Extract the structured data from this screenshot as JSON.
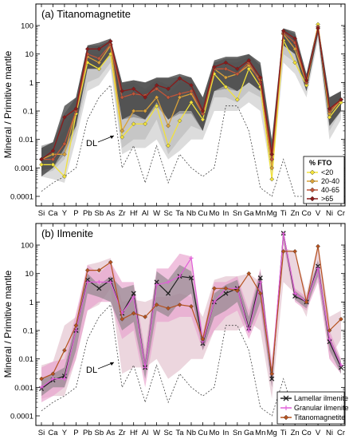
{
  "ylabel": "Mineral / Primitive mantle",
  "elements": [
    "Si",
    "Ca",
    "Y",
    "P",
    "Pb",
    "Sb",
    "As",
    "Zr",
    "Hf",
    "Al",
    "W",
    "Sc",
    "Ta",
    "Nb",
    "Cu",
    "Mo",
    "In",
    "Sn",
    "Ga",
    "Mn",
    "Mg",
    "Ti",
    "Zn",
    "Co",
    "V",
    "Ni",
    "Cr"
  ],
  "ytick_labels": [
    "0.0001",
    "0.001",
    "0.01",
    "0.1",
    "1",
    "10",
    "100"
  ],
  "colors": {
    "fto_lt20": "#f2e23a",
    "fto_20_40": "#d9a23a",
    "fto_40_65": "#c0563a",
    "fto_gt65": "#8b1a1a",
    "band_dark": "#3c3c3c",
    "band_mid": "#7a7a7a",
    "band_light": "#b4b4b4",
    "lamellar": "#222222",
    "granular": "#e05fd8",
    "granular_band": "#e8a0cc",
    "titanomagnetite_b": "#b5521e",
    "dl_line": "#444444"
  },
  "chart_data": [
    {
      "panel": "a",
      "type": "line",
      "title": "(a) Titanomagnetite",
      "ylabel": "Mineral / Primitive mantle",
      "yscale": "log",
      "ylim": [
        0.0001,
        300
      ],
      "categories": [
        "Si",
        "Ca",
        "Y",
        "P",
        "Pb",
        "Sb",
        "As",
        "Zr",
        "Hf",
        "Al",
        "W",
        "Sc",
        "Ta",
        "Nb",
        "Cu",
        "Mo",
        "In",
        "Sn",
        "Ga",
        "Mn",
        "Mg",
        "Ti",
        "Zn",
        "Co",
        "V",
        "Ni",
        "Cr"
      ],
      "legend": {
        "title": "% FTO",
        "position": "bottom-right",
        "entries": [
          "<20",
          "20-40",
          "40-65",
          ">65"
        ]
      },
      "annotation": "DL",
      "bands": [
        {
          "series": ">65",
          "low": [
            0.0005,
            0.001,
            0.005,
            0.03,
            3,
            3,
            10,
            0.05,
            0.08,
            0.05,
            0.2,
            0.05,
            0.1,
            0.1,
            0.02,
            0.5,
            0.8,
            0.5,
            1,
            0.5,
            0.0008,
            20,
            10,
            0.5,
            50,
            0.03,
            0.1
          ],
          "high": [
            0.005,
            0.008,
            0.15,
            0.3,
            20,
            25,
            35,
            1,
            1.2,
            1,
            1.5,
            1.5,
            2,
            1.5,
            0.3,
            6,
            8,
            8,
            10,
            5,
            0.01,
            80,
            60,
            2,
            120,
            0.3,
            0.5
          ]
        },
        {
          "series": "40-65",
          "low": [
            0.0008,
            0.001,
            0.003,
            0.03,
            3,
            3,
            9,
            0.05,
            0.06,
            0.05,
            0.15,
            0.05,
            0.08,
            0.08,
            0.02,
            0.5,
            0.6,
            0.5,
            1,
            0.5,
            0.0008,
            20,
            10,
            0.5,
            50,
            0.03,
            0.1
          ],
          "high": [
            0.006,
            0.008,
            0.08,
            0.3,
            20,
            20,
            30,
            1,
            1.2,
            1,
            1.4,
            1.4,
            1.6,
            1.5,
            0.3,
            5,
            7,
            7,
            10,
            4,
            0.008,
            80,
            50,
            2,
            110,
            0.3,
            0.5
          ]
        },
        {
          "series": "20-40",
          "low": [
            0.0006,
            0.0008,
            0.002,
            0.02,
            1,
            1.5,
            5,
            0.005,
            0.01,
            0.01,
            0.05,
            0.003,
            0.01,
            0.03,
            0.02,
            0.3,
            0.3,
            0.2,
            0.5,
            0.3,
            0.001,
            10,
            5,
            0.5,
            50,
            0.02,
            0.1
          ],
          "high": [
            0.005,
            0.008,
            0.05,
            0.3,
            15,
            20,
            30,
            0.8,
            1,
            0.6,
            1.2,
            0.8,
            1.5,
            1.2,
            0.2,
            5,
            5,
            5,
            8,
            4,
            0.006,
            80,
            40,
            1.5,
            100,
            0.3,
            0.5
          ]
        },
        {
          "series": "<20",
          "low": [
            0.0005,
            0.0004,
            0.0003,
            0.01,
            0.5,
            0.8,
            3,
            0.003,
            0.005,
            0.005,
            0.01,
            0.002,
            0.004,
            0.01,
            0.01,
            0.1,
            0.1,
            0.1,
            0.2,
            0.1,
            0.0004,
            5,
            2,
            0.3,
            30,
            0.01,
            0.05
          ],
          "high": [
            0.004,
            0.006,
            0.02,
            0.2,
            10,
            10,
            20,
            0.3,
            0.5,
            0.5,
            0.8,
            0.4,
            1,
            1,
            0.15,
            4,
            3,
            3,
            5,
            3,
            0.003,
            60,
            20,
            1.5,
            100,
            0.2,
            0.4
          ]
        }
      ],
      "series": [
        {
          "name": "<20",
          "values": [
            0.0013,
            0.0013,
            0.0005,
            0.08,
            5,
            3,
            10,
            0.012,
            0.035,
            0.035,
            0.15,
            0.006,
            0.045,
            0.2,
            0.05,
            2,
            0.7,
            0.25,
            3,
            0.7,
            0.0004,
            30,
            5,
            0.8,
            110,
            0.06,
            0.2
          ]
        },
        {
          "name": "20-40",
          "values": [
            0.002,
            0.003,
            0.003,
            0.1,
            8,
            5,
            20,
            0.02,
            0.1,
            0.1,
            0.3,
            0.03,
            0.3,
            0.4,
            0.08,
            3,
            1.5,
            2,
            4,
            1.2,
            0.001,
            50,
            15,
            1,
            90,
            0.08,
            0.25
          ]
        },
        {
          "name": "40-65",
          "values": [
            0.002,
            0.002,
            0.007,
            0.1,
            10,
            7,
            22,
            0.3,
            0.4,
            0.35,
            0.6,
            0.3,
            0.4,
            0.5,
            0.08,
            3,
            3,
            2,
            5,
            1,
            0.002,
            55,
            25,
            1,
            90,
            0.1,
            0.25
          ]
        },
        {
          "name": ">65",
          "values": [
            0.002,
            0.004,
            0.06,
            0.12,
            15,
            15,
            28,
            0.5,
            0.6,
            0.3,
            0.8,
            0.6,
            1.4,
            0.8,
            0.1,
            3.5,
            5,
            3,
            6,
            1.5,
            0.003,
            65,
            35,
            1.2,
            80,
            0.12,
            0.25
          ]
        }
      ],
      "detection_limit": [
        0.00015,
        0.0003,
        0.0005,
        0.001,
        0.05,
        0.3,
        0.8,
        0.001,
        0.006,
        0.0003,
        0.006,
        0.0003,
        0.003,
        0.001,
        0.0005,
        0.001,
        0.15,
        0.15,
        0.02,
        0.0002,
        0.0001,
        0.002,
        0.0001,
        0.0001,
        0.0001,
        0.0001,
        0.0001
      ]
    },
    {
      "panel": "b",
      "type": "line",
      "title": "(b) Ilmenite",
      "ylabel": "Mineral / Primitive mantle",
      "yscale": "log",
      "ylim": [
        0.0001,
        300
      ],
      "categories": [
        "Si",
        "Ca",
        "Y",
        "P",
        "Pb",
        "Sb",
        "As",
        "Zr",
        "Hf",
        "Al",
        "W",
        "Sc",
        "Ta",
        "Nb",
        "Cu",
        "Mo",
        "In",
        "Sn",
        "Ga",
        "Mn",
        "Mg",
        "Ti",
        "Zn",
        "Co",
        "V",
        "Ni",
        "Cr"
      ],
      "legend": {
        "position": "bottom-right",
        "entries": [
          "Lamellar ilmenite",
          "Granular ilmenite",
          "Titanomagnetite"
        ]
      },
      "annotation": "DL",
      "bands": [
        {
          "series": "Lamellar ilmenite",
          "low": [
            0.0005,
            0.001,
            0.001,
            0.02,
            2,
            1.5,
            1,
            0.1,
            0.2,
            0.002,
            0.5,
            0.3,
            1,
            2,
            0.02,
            0.3,
            0.5,
            1,
            0.08,
            1,
            0.001,
            150,
            1.2,
            0.6,
            8,
            0.02,
            0.003
          ],
          "high": [
            0.002,
            0.003,
            0.005,
            0.2,
            10,
            4,
            8,
            3,
            4,
            0.01,
            12,
            6,
            20,
            12,
            0.06,
            2,
            4,
            6,
            0.3,
            12,
            0.004,
            300,
            2.5,
            1.2,
            30,
            0.06,
            0.008
          ]
        },
        {
          "series": "Granular ilmenite",
          "low": [
            0.0003,
            0.0005,
            0.001,
            0.01,
            0.5,
            1,
            1,
            0.05,
            0.1,
            0.001,
            0.2,
            0.2,
            0.3,
            0.3,
            0.02,
            0.1,
            0.3,
            0.5,
            0.05,
            0.5,
            0.001,
            100,
            1,
            0.5,
            5,
            0.01,
            0.003
          ],
          "high": [
            0.005,
            0.008,
            0.01,
            0.4,
            20,
            10,
            25,
            5,
            5,
            0.02,
            15,
            15,
            50,
            40,
            0.08,
            5,
            5,
            8,
            0.5,
            15,
            0.005,
            300,
            3,
            1.5,
            30,
            0.1,
            0.01
          ]
        },
        {
          "series": "Titanomagnetite",
          "low": [
            0.0004,
            0.0005,
            0.0005,
            0.01,
            0.5,
            0.8,
            3,
            0.003,
            0.005,
            0.005,
            0.01,
            0.002,
            0.004,
            0.01,
            0.01,
            0.1,
            0.1,
            0.1,
            0.2,
            0.1,
            0.0004,
            5,
            2,
            0.3,
            30,
            0.01,
            0.05
          ],
          "high": [
            0.006,
            0.008,
            0.15,
            0.3,
            20,
            25,
            35,
            1,
            1.2,
            1,
            1.5,
            1.5,
            2,
            1.5,
            0.3,
            6,
            8,
            8,
            10,
            5,
            0.01,
            80,
            60,
            2,
            120,
            0.3,
            0.5
          ]
        }
      ],
      "series": [
        {
          "name": "Lamellar ilmenite",
          "values": [
            0.0009,
            0.0018,
            0.0025,
            0.1,
            6,
            3,
            6,
            0.4,
            2,
            0.005,
            5,
            2,
            8,
            7,
            0.035,
            1,
            2,
            3,
            0.12,
            7,
            0.002,
            260,
            1.6,
            1,
            18,
            0.04,
            0.005
          ]
        },
        {
          "name": "Granular ilmenite",
          "values": [
            0.001,
            0.002,
            0.002,
            0.1,
            5,
            5,
            5,
            0.4,
            1.5,
            0.005,
            4,
            5,
            8,
            35,
            0.04,
            1,
            3,
            3,
            0.1,
            5,
            0.003,
            250,
            2,
            1,
            15,
            0.05,
            0.006
          ]
        },
        {
          "name": "Titanomagnetite",
          "values": [
            0.002,
            0.003,
            0.02,
            0.15,
            13,
            13,
            25,
            0.25,
            0.4,
            0.3,
            0.8,
            0.6,
            0.8,
            0.7,
            0.05,
            3,
            3,
            2.5,
            10,
            2,
            0.003,
            60,
            60,
            1,
            90,
            0.1,
            0.25
          ]
        }
      ],
      "detection_limit": [
        0.00015,
        0.0003,
        0.0005,
        0.001,
        0.05,
        0.3,
        0.8,
        0.001,
        0.006,
        0.0003,
        0.006,
        0.0003,
        0.003,
        0.001,
        0.0005,
        0.001,
        0.15,
        0.15,
        0.02,
        0.0002,
        0.0001,
        0.002,
        0.0001,
        0.0001,
        0.0001,
        0.0001,
        0.0001
      ]
    }
  ]
}
